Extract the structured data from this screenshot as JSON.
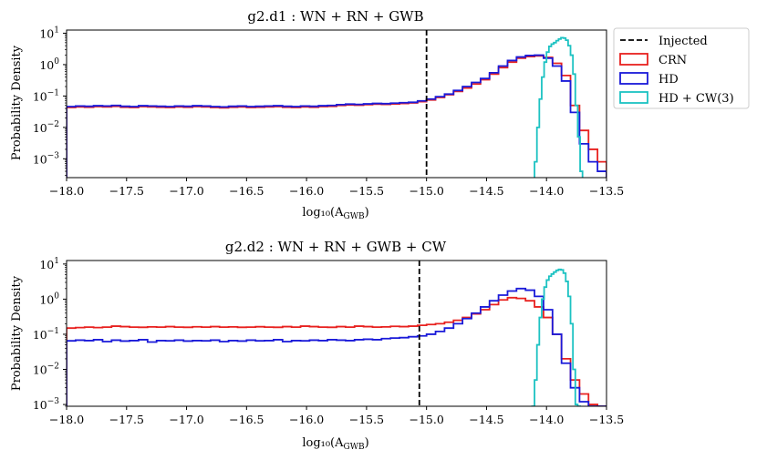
{
  "figure": {
    "legend": {
      "placement": "outside-top-right",
      "entries": [
        {
          "label": "Injected",
          "color": "#000000",
          "style": "dashed"
        },
        {
          "label": "CRN",
          "color": "#e8211f",
          "style": "patch"
        },
        {
          "label": "HD",
          "color": "#1a1ad9",
          "style": "patch"
        },
        {
          "label": "HD + CW(3)",
          "color": "#1cc2c2",
          "style": "patch"
        }
      ]
    }
  },
  "chart_data": [
    {
      "type": "histogram-step",
      "title": "g2.d1 : WN + RN + GWB",
      "xlabel": "log₁₀(A",
      "xlabel_sub": "GWB",
      "xlabel_close": ")",
      "ylabel": "Probability Density",
      "xlim": [
        -18.0,
        -13.5
      ],
      "ylim_log10": [
        -3.6,
        1.1
      ],
      "yscale": "log",
      "x_ticks": [
        -18.0,
        -17.5,
        -17.0,
        -16.5,
        -16.0,
        -15.5,
        -15.0,
        -14.5,
        -14.0,
        -13.5
      ],
      "x_tick_labels": [
        "−18.0",
        "−17.5",
        "−17.0",
        "−16.5",
        "−16.0",
        "−15.5",
        "−15.0",
        "−14.5",
        "−14.0",
        "−13.5"
      ],
      "y_ticks_exp": [
        -3,
        -2,
        -1,
        0,
        1
      ],
      "injected_x": -15.0,
      "series": [
        {
          "name": "CRN",
          "color": "#e8211f",
          "bin_start": -18.0,
          "bin_width": 0.075,
          "values": [
            0.043,
            0.045,
            0.044,
            0.046,
            0.045,
            0.047,
            0.044,
            0.043,
            0.046,
            0.045,
            0.044,
            0.043,
            0.045,
            0.044,
            0.046,
            0.045,
            0.043,
            0.042,
            0.044,
            0.045,
            0.043,
            0.044,
            0.045,
            0.046,
            0.044,
            0.043,
            0.045,
            0.044,
            0.046,
            0.047,
            0.05,
            0.052,
            0.051,
            0.053,
            0.055,
            0.054,
            0.056,
            0.058,
            0.06,
            0.066,
            0.075,
            0.09,
            0.11,
            0.14,
            0.18,
            0.24,
            0.33,
            0.5,
            0.8,
            1.2,
            1.6,
            1.8,
            1.9,
            1.7,
            1.1,
            0.45,
            0.05,
            0.008,
            0.002,
            0.0008
          ]
        },
        {
          "name": "HD",
          "color": "#1a1ad9",
          "bin_start": -18.0,
          "bin_width": 0.075,
          "values": [
            0.046,
            0.048,
            0.047,
            0.049,
            0.048,
            0.05,
            0.047,
            0.046,
            0.049,
            0.048,
            0.047,
            0.046,
            0.048,
            0.047,
            0.049,
            0.048,
            0.046,
            0.045,
            0.047,
            0.048,
            0.046,
            0.047,
            0.048,
            0.049,
            0.047,
            0.046,
            0.048,
            0.047,
            0.049,
            0.05,
            0.053,
            0.055,
            0.054,
            0.056,
            0.058,
            0.057,
            0.059,
            0.061,
            0.063,
            0.07,
            0.08,
            0.095,
            0.115,
            0.15,
            0.2,
            0.27,
            0.36,
            0.55,
            0.9,
            1.35,
            1.75,
            1.95,
            2.0,
            1.6,
            0.9,
            0.3,
            0.03,
            0.003,
            0.0008,
            0.0004
          ]
        },
        {
          "name": "HD + CW(3)",
          "color": "#1cc2c2",
          "bin_start": -14.1,
          "bin_width": 0.02,
          "values": [
            0.0008,
            0.01,
            0.08,
            0.4,
            1.2,
            2.5,
            3.8,
            4.5,
            5.0,
            5.8,
            6.5,
            7.2,
            7.0,
            6.0,
            4.0,
            2.0,
            0.5,
            0.05,
            0.005,
            0.0004
          ]
        }
      ]
    },
    {
      "type": "histogram-step",
      "title": "g2.d2 : WN + RN + GWB + CW",
      "xlabel": "log₁₀(A",
      "xlabel_sub": "GWB",
      "xlabel_close": ")",
      "ylabel": "Probability Density",
      "xlim": [
        -18.0,
        -13.5
      ],
      "ylim_log10": [
        -3.05,
        1.1
      ],
      "yscale": "log",
      "x_ticks": [
        -18.0,
        -17.5,
        -17.0,
        -16.5,
        -16.0,
        -15.5,
        -15.0,
        -14.5,
        -14.0,
        -13.5
      ],
      "x_tick_labels": [
        "−18.0",
        "−17.5",
        "−17.0",
        "−16.5",
        "−16.0",
        "−15.5",
        "−15.0",
        "−14.5",
        "−14.0",
        "−13.5"
      ],
      "y_ticks_exp": [
        -3,
        -2,
        -1,
        0,
        1
      ],
      "injected_x": -15.06,
      "series": [
        {
          "name": "CRN",
          "color": "#e8211f",
          "bin_start": -18.0,
          "bin_width": 0.075,
          "values": [
            0.15,
            0.155,
            0.16,
            0.155,
            0.16,
            0.17,
            0.165,
            0.16,
            0.158,
            0.162,
            0.16,
            0.165,
            0.16,
            0.158,
            0.163,
            0.16,
            0.165,
            0.16,
            0.162,
            0.158,
            0.16,
            0.164,
            0.16,
            0.158,
            0.165,
            0.16,
            0.17,
            0.165,
            0.16,
            0.158,
            0.165,
            0.16,
            0.17,
            0.165,
            0.16,
            0.162,
            0.168,
            0.165,
            0.17,
            0.18,
            0.19,
            0.2,
            0.22,
            0.25,
            0.3,
            0.38,
            0.5,
            0.7,
            0.95,
            1.1,
            1.05,
            0.9,
            0.6,
            0.3,
            0.1,
            0.02,
            0.005,
            0.002,
            0.001,
            0.0005
          ]
        },
        {
          "name": "HD",
          "color": "#1a1ad9",
          "bin_start": -18.0,
          "bin_width": 0.075,
          "values": [
            0.065,
            0.068,
            0.066,
            0.07,
            0.062,
            0.068,
            0.064,
            0.066,
            0.07,
            0.06,
            0.066,
            0.065,
            0.068,
            0.064,
            0.066,
            0.065,
            0.068,
            0.062,
            0.066,
            0.064,
            0.068,
            0.065,
            0.066,
            0.07,
            0.062,
            0.066,
            0.065,
            0.068,
            0.066,
            0.07,
            0.068,
            0.066,
            0.07,
            0.072,
            0.07,
            0.075,
            0.078,
            0.08,
            0.085,
            0.09,
            0.1,
            0.12,
            0.15,
            0.2,
            0.28,
            0.4,
            0.6,
            0.9,
            1.3,
            1.7,
            2.0,
            1.8,
            1.2,
            0.5,
            0.1,
            0.015,
            0.003,
            0.0012,
            0.0008,
            0.0005
          ]
        },
        {
          "name": "HD + CW(3)",
          "color": "#1cc2c2",
          "bin_start": -14.12,
          "bin_width": 0.02,
          "values": [
            0.0008,
            0.005,
            0.05,
            0.3,
            1.0,
            2.2,
            3.5,
            4.5,
            5.2,
            5.9,
            6.6,
            7.0,
            6.8,
            5.5,
            3.2,
            1.2,
            0.2,
            0.01,
            0.001,
            0.0004
          ]
        }
      ]
    }
  ]
}
